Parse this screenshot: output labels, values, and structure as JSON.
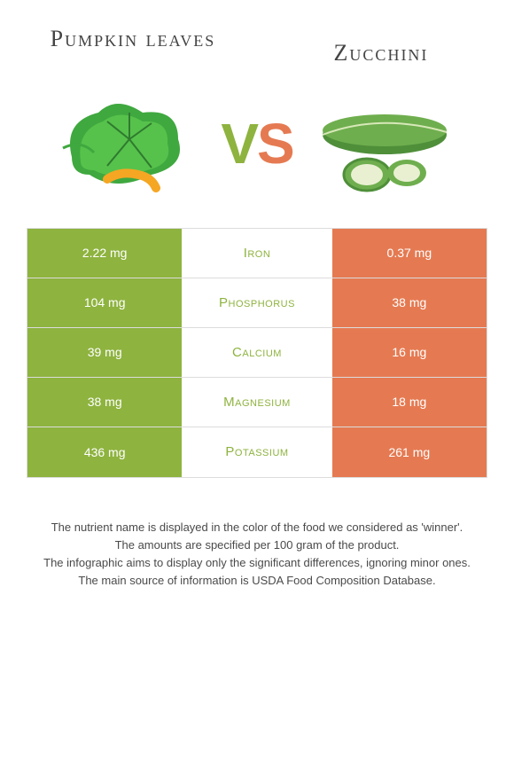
{
  "header": {
    "left_title": "Pumpkin leaves",
    "right_title": "Zucchini"
  },
  "vs": {
    "v": "V",
    "s": "S"
  },
  "colors": {
    "left_bg": "#8eb33f",
    "right_bg": "#e57a52",
    "mid_bg": "#ffffff",
    "border": "#dcdcdc",
    "winner_left_text": "#8eb33f",
    "winner_right_text": "#e57a52",
    "value_text": "#ffffff"
  },
  "table": {
    "rows": [
      {
        "nutrient": "Iron",
        "left": "2.22 mg",
        "right": "0.37 mg",
        "winner": "left"
      },
      {
        "nutrient": "Phosphorus",
        "left": "104 mg",
        "right": "38 mg",
        "winner": "left"
      },
      {
        "nutrient": "Calcium",
        "left": "39 mg",
        "right": "16 mg",
        "winner": "left"
      },
      {
        "nutrient": "Magnesium",
        "left": "38 mg",
        "right": "18 mg",
        "winner": "left"
      },
      {
        "nutrient": "Potassium",
        "left": "436 mg",
        "right": "261 mg",
        "winner": "left"
      }
    ]
  },
  "footer": {
    "line1": "The nutrient name is displayed in the color of the food we considered as 'winner'.",
    "line2": "The amounts are specified per 100 gram of the product.",
    "line3": "The infographic aims to display only the significant differences, ignoring minor ones.",
    "line4": "The main source of information is USDA Food Composition Database."
  },
  "images": {
    "left_alt": "pumpkin-leaves",
    "right_alt": "zucchini"
  }
}
